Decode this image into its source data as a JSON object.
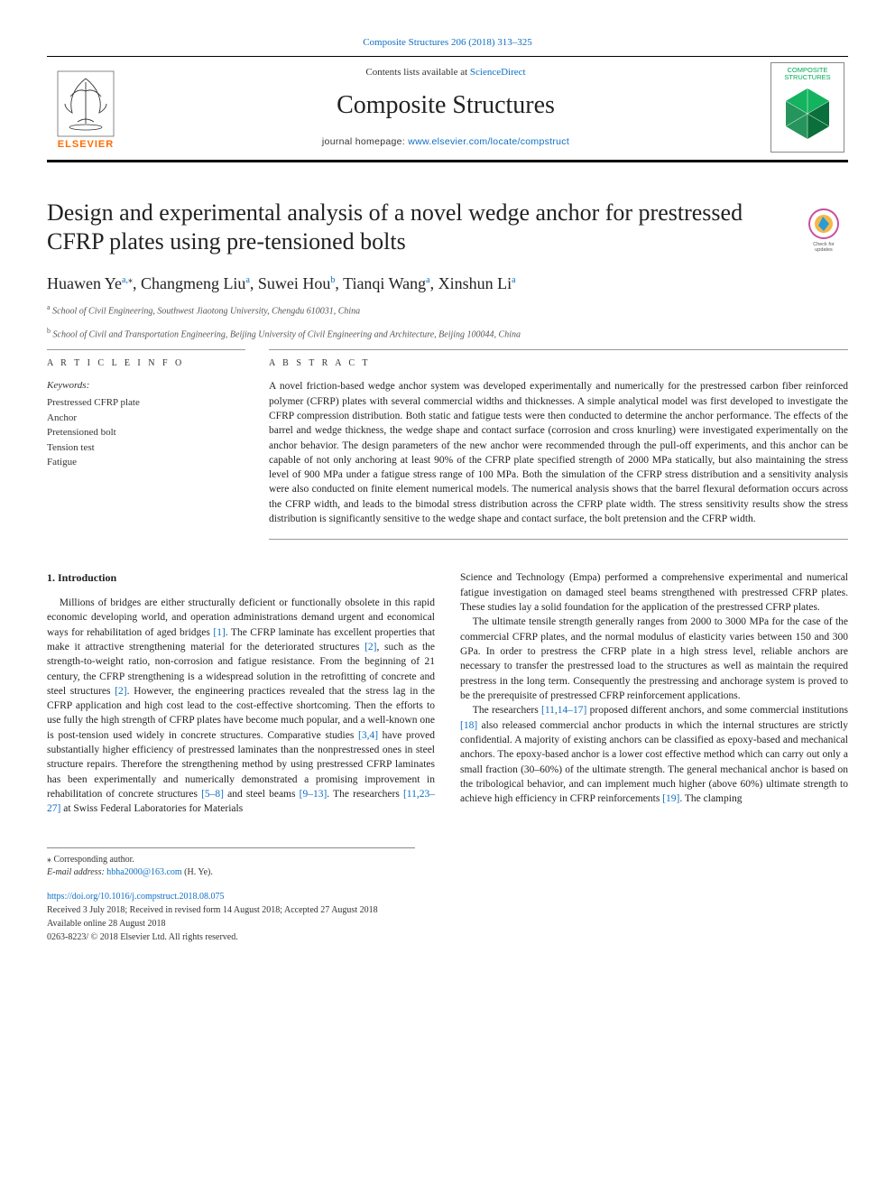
{
  "journal_ref": "Composite Structures 206 (2018) 313–325",
  "header": {
    "contents_prefix": "Contents lists available at ",
    "contents_link": "ScienceDirect",
    "journal_name": "Composite Structures",
    "homepage_prefix": "journal homepage: ",
    "homepage_link": "www.elsevier.com/locate/compstruct",
    "publisher_logo_text": "ELSEVIER",
    "cover_title": "COMPOSITE STRUCTURES"
  },
  "article": {
    "title": "Design and experimental analysis of a novel wedge anchor for prestressed CFRP plates using pre-tensioned bolts",
    "check_updates_label": "Check for updates",
    "authors_html": [
      {
        "name": "Huawen Ye",
        "sup": "a,",
        "star": "⁎"
      },
      {
        "name": "Changmeng Liu",
        "sup": "a"
      },
      {
        "name": "Suwei Hou",
        "sup": "b"
      },
      {
        "name": "Tianqi Wang",
        "sup": "a"
      },
      {
        "name": "Xinshun Li",
        "sup": "a"
      }
    ],
    "affiliations": [
      {
        "sup": "a",
        "text": "School of Civil Engineering, Southwest Jiaotong University, Chengdu 610031, China"
      },
      {
        "sup": "b",
        "text": "School of Civil and Transportation Engineering, Beijing University of Civil Engineering and Architecture, Beijing 100044, China"
      }
    ]
  },
  "article_info": {
    "heading": "A R T I C L E   I N F O",
    "keywords_label": "Keywords:",
    "keywords": [
      "Prestressed CFRP plate",
      "Anchor",
      "Pretensioned bolt",
      "Tension test",
      "Fatigue"
    ]
  },
  "abstract": {
    "heading": "A B S T R A C T",
    "text": "A novel friction-based wedge anchor system was developed experimentally and numerically for the prestressed carbon fiber reinforced polymer (CFRP) plates with several commercial widths and thicknesses. A simple analytical model was first developed to investigate the CFRP compression distribution. Both static and fatigue tests were then conducted to determine the anchor performance. The effects of the barrel and wedge thickness, the wedge shape and contact surface (corrosion and cross knurling) were investigated experimentally on the anchor behavior. The design parameters of the new anchor were recommended through the pull-off experiments, and this anchor can be capable of not only anchoring at least 90% of the CFRP plate specified strength of 2000 MPa statically, but also maintaining the stress level of 900 MPa under a fatigue stress range of 100 MPa. Both the simulation of the CFRP stress distribution and a sensitivity analysis were also conducted on finite element numerical models. The numerical analysis shows that the barrel flexural deformation occurs across the CFRP width, and leads to the bimodal stress distribution across the CFRP plate width. The stress sensitivity results show the stress distribution is significantly sensitive to the wedge shape and contact surface, the bolt pretension and the CFRP width."
  },
  "body": {
    "intro_heading": "1. Introduction",
    "col1": [
      "Millions of bridges are either structurally deficient or functionally obsolete in this rapid economic developing world, and operation administrations demand urgent and economical ways for rehabilitation of aged bridges [1]. The CFRP laminate has excellent properties that make it attractive strengthening material for the deteriorated structures [2], such as the strength-to-weight ratio, non-corrosion and fatigue resistance. From the beginning of 21 century, the CFRP strengthening is a widespread solution in the retrofitting of concrete and steel structures [2]. However, the engineering practices revealed that the stress lag in the CFRP application and high cost lead to the cost-effective shortcoming. Then the efforts to use fully the high strength of CFRP plates have become much popular, and a well-known one is post-tension used widely in concrete structures. Comparative studies [3,4] have proved substantially higher efficiency of prestressed laminates than the nonprestressed ones in steel structure repairs. Therefore the strengthening method by using prestressed CFRP laminates has been experimentally and numerically demonstrated a promising improvement in rehabilitation of concrete structures [5–8] and steel beams [9–13]. The researchers [11,23–27] at Swiss Federal Laboratories for Materials"
    ],
    "col2": [
      "Science and Technology (Empa) performed a comprehensive experimental and numerical fatigue investigation on damaged steel beams strengthened with prestressed CFRP plates. These studies lay a solid foundation for the application of the prestressed CFRP plates.",
      "The ultimate tensile strength generally ranges from 2000 to 3000 MPa for the case of the commercial CFRP plates, and the normal modulus of elasticity varies between 150 and 300 GPa. In order to prestress the CFRP plate in a high stress level, reliable anchors are necessary to transfer the prestressed load to the structures as well as maintain the required prestress in the long term. Consequently the prestressing and anchorage system is proved to be the prerequisite of prestressed CFRP reinforcement applications.",
      "The researchers [11,14–17] proposed different anchors, and some commercial institutions [18] also released commercial anchor products in which the internal structures are strictly confidential. A majority of existing anchors can be classified as epoxy-based and mechanical anchors. The epoxy-based anchor is a lower cost effective method which can carry out only a small fraction (30–60%) of the ultimate strength. The general mechanical anchor is based on the tribological behavior, and can implement much higher (above 60%) ultimate strength to achieve high efficiency in CFRP reinforcements [19]. The clamping"
    ]
  },
  "footnotes": {
    "corr_label": "⁎ Corresponding author.",
    "email_label": "E-mail address: ",
    "email": "hbha2000@163.com",
    "email_suffix": " (H. Ye)."
  },
  "pubinfo": {
    "doi": "https://doi.org/10.1016/j.compstruct.2018.08.075",
    "dates": "Received 3 July 2018; Received in revised form 14 August 2018; Accepted 27 August 2018",
    "online": "Available online 28 August 2018",
    "copyright": "0263-8223/ © 2018 Elsevier Ltd. All rights reserved."
  },
  "colors": {
    "link": "#0d6ec4",
    "elsevier_orange": "#ff6b00",
    "text": "#1a1a1a",
    "rule": "#999999"
  }
}
